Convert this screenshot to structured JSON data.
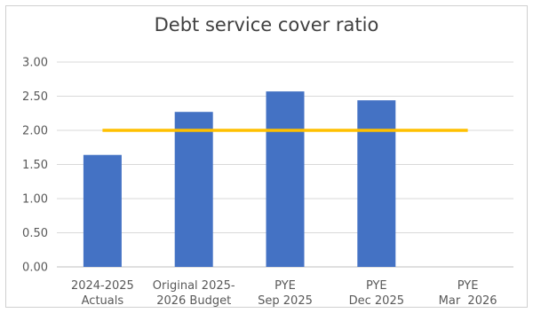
{
  "chart_data": {
    "type": "bar",
    "title": "Debt service cover ratio",
    "categories": [
      [
        "2024-2025",
        "Actuals"
      ],
      [
        "Original 2025-",
        "2026 Budget"
      ],
      [
        "PYE",
        "Sep 2025"
      ],
      [
        "PYE",
        "Dec 2025"
      ],
      [
        "PYE",
        "Mar  2026"
      ]
    ],
    "values": [
      1.64,
      2.27,
      2.57,
      2.44,
      null
    ],
    "reference_line": {
      "value": 2.0,
      "color": "#ffc000"
    },
    "ylim": [
      0,
      3
    ],
    "yticks": [
      "0.00",
      "0.50",
      "1.00",
      "1.50",
      "2.00",
      "2.50",
      "3.00"
    ],
    "bar_color": "#4472c4",
    "grid": true
  }
}
